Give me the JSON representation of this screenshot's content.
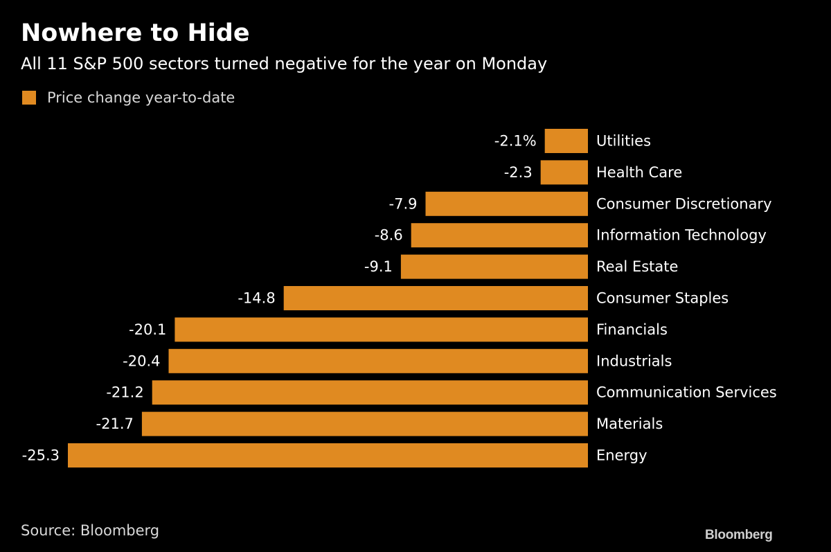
{
  "colors": {
    "background": "#000000",
    "bar": "#e08a21",
    "text": "#ffffff"
  },
  "legend": {
    "label": "Price change year-to-date"
  },
  "source": "Source: Bloomberg",
  "brand": "Bloomberg",
  "chart_data": {
    "type": "bar",
    "orientation": "horizontal",
    "title": "Nowhere to Hide",
    "subtitle": "All 11 S&P 500 sectors turned negative for the year on Monday",
    "legend_position": "top-left",
    "grid": false,
    "xlim": [
      -25.3,
      0
    ],
    "categories": [
      "Utilities",
      "Health Care",
      "Consumer Discretionary",
      "Information Technology",
      "Real Estate",
      "Consumer Staples",
      "Financials",
      "Industrials",
      "Communication Services",
      "Materials",
      "Energy"
    ],
    "series": [
      {
        "name": "Price change year-to-date",
        "values": [
          -2.1,
          -2.3,
          -7.9,
          -8.6,
          -9.1,
          -14.8,
          -20.1,
          -20.4,
          -21.2,
          -21.7,
          -25.3
        ]
      }
    ],
    "value_labels": [
      "-2.1%",
      "-2.3",
      "-7.9",
      "-8.6",
      "-9.1",
      "-14.8",
      "-20.1",
      "-20.4",
      "-21.2",
      "-21.7",
      "-25.3"
    ]
  }
}
